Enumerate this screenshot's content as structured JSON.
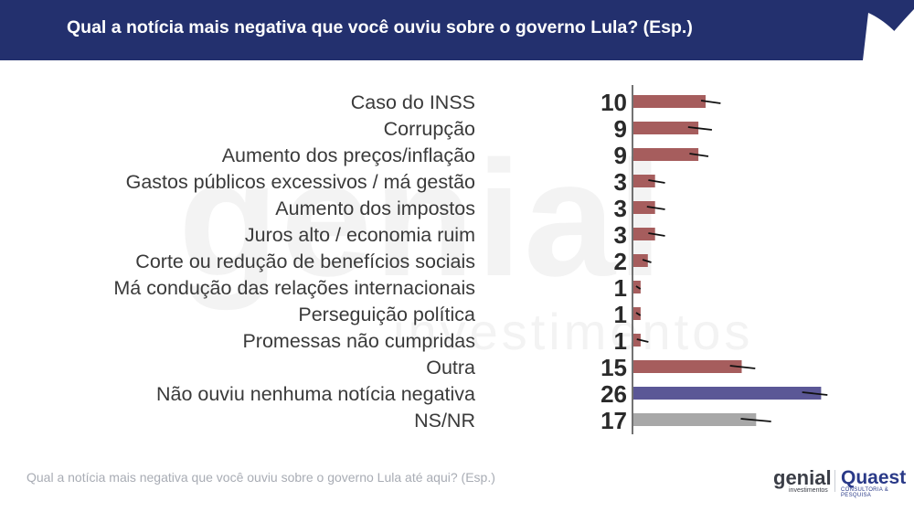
{
  "header": {
    "title": "Qual a notícia mais negativa que você ouviu sobre o governo Lula? (Esp.)"
  },
  "colors": {
    "header_bg": "#23306e",
    "bar_default": "#a65d5d",
    "bar_highlight": "#5b5796",
    "bar_nsnr": "#a8a8a8",
    "error_bar": "#111111",
    "axis": "#444444"
  },
  "chart_data": {
    "type": "bar",
    "orientation": "horizontal",
    "title": "Qual a notícia mais negativa que você ouviu sobre o governo Lula? (Esp.)",
    "categories": [
      "Caso do INSS",
      "Corrupção",
      "Aumento dos preços/inflação",
      "Gastos públicos excessivos / má gestão",
      "Aumento dos impostos",
      "Juros alto / economia ruim",
      "Corte ou redução de benefícios sociais",
      "Má condução das relações internacionais",
      "Perseguição política",
      "Promessas não cumpridas",
      "Outra",
      "Não ouviu nenhuma notícia negativa",
      "NS/NR"
    ],
    "values": [
      10,
      9,
      9,
      3,
      3,
      3,
      2,
      1,
      1,
      1,
      15,
      26,
      17
    ],
    "error_low": [
      9.5,
      7.7,
      7.9,
      2.2,
      2.0,
      2.2,
      1.4,
      0.5,
      0.5,
      0.6,
      13.5,
      23.5,
      15.0
    ],
    "error_high": [
      12.2,
      11.0,
      10.5,
      4.5,
      4.5,
      4.5,
      2.6,
      1.1,
      1.1,
      2.2,
      17.0,
      27.0,
      19.2
    ],
    "bar_colors": [
      "#a65d5d",
      "#a65d5d",
      "#a65d5d",
      "#a65d5d",
      "#a65d5d",
      "#a65d5d",
      "#a65d5d",
      "#a65d5d",
      "#a65d5d",
      "#a65d5d",
      "#a65d5d",
      "#5b5796",
      "#a8a8a8"
    ],
    "xlim": [
      0,
      30
    ],
    "grid": false,
    "legend": "none"
  },
  "footer": {
    "question": "Qual a notícia mais negativa que você ouviu sobre o governo Lula até aqui? (Esp.)",
    "logo_genial": "genial",
    "logo_genial_sub": "investimentos",
    "logo_quaest": "Quaest",
    "logo_quaest_sub": "CONSULTORIA & PESQUISA"
  },
  "watermark": {
    "main": "genial",
    "sub": "investimentos"
  }
}
